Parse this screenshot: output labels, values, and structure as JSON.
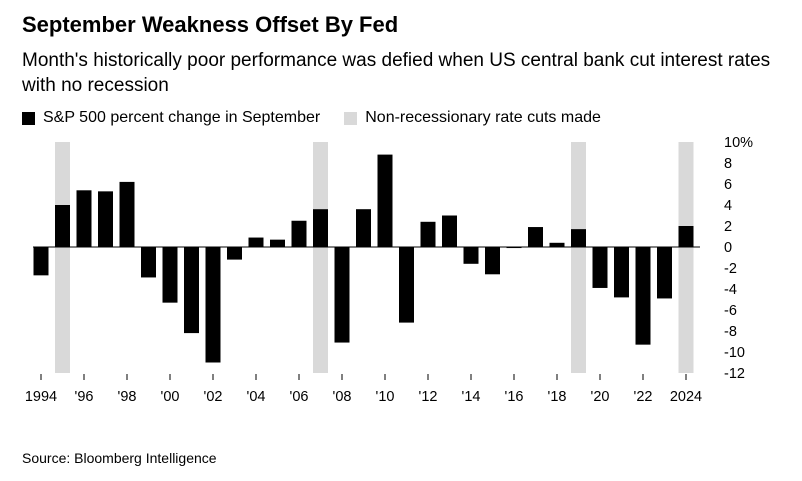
{
  "title": "September Weakness Offset By Fed",
  "subtitle": "Month's historically poor performance was defied when US central bank cut interest rates with no recession",
  "legend": {
    "bars_label": "S&P 500 percent change in September",
    "shade_label": "Non-recessionary rate cuts made"
  },
  "colors": {
    "bar": "#000000",
    "shade": "#d9d9d9",
    "zero_line": "#000000"
  },
  "source": "Source: Bloomberg Intelligence",
  "chart_data": {
    "type": "bar",
    "x": [
      1994,
      1995,
      1996,
      1997,
      1998,
      1999,
      2000,
      2001,
      2002,
      2003,
      2004,
      2005,
      2006,
      2007,
      2008,
      2009,
      2010,
      2011,
      2012,
      2013,
      2014,
      2015,
      2016,
      2017,
      2018,
      2019,
      2020,
      2021,
      2022,
      2023,
      2024
    ],
    "values": [
      -2.7,
      4.0,
      5.4,
      5.3,
      6.2,
      -2.9,
      -5.3,
      -8.2,
      -11.0,
      -1.2,
      0.9,
      0.7,
      2.5,
      3.6,
      -9.1,
      3.6,
      8.8,
      -7.2,
      2.4,
      3.0,
      -1.6,
      -2.6,
      -0.1,
      1.9,
      0.4,
      1.7,
      -3.9,
      -4.8,
      -9.3,
      -4.9,
      2.0
    ],
    "shaded_years": [
      1995,
      2007,
      2019,
      2024
    ],
    "ylim": [
      -12,
      10
    ],
    "yticks": [
      10,
      8,
      6,
      4,
      2,
      0,
      -2,
      -4,
      -6,
      -8,
      -10,
      -12
    ],
    "ytick_labels": [
      "10%",
      "8",
      "6",
      "4",
      "2",
      "0",
      "-2",
      "-4",
      "-6",
      "-8",
      "-10",
      "-12"
    ],
    "xtick_years": [
      1994,
      1996,
      1998,
      2000,
      2002,
      2004,
      2006,
      2008,
      2010,
      2012,
      2014,
      2016,
      2018,
      2020,
      2022,
      2024
    ],
    "xtick_labels": [
      "1994",
      "'96",
      "'98",
      "'00",
      "'02",
      "'04",
      "'06",
      "'08",
      "'10",
      "'12",
      "'14",
      "'16",
      "'18",
      "'20",
      "'22",
      "2024"
    ],
    "grid": false,
    "legend_position": "top-left"
  }
}
